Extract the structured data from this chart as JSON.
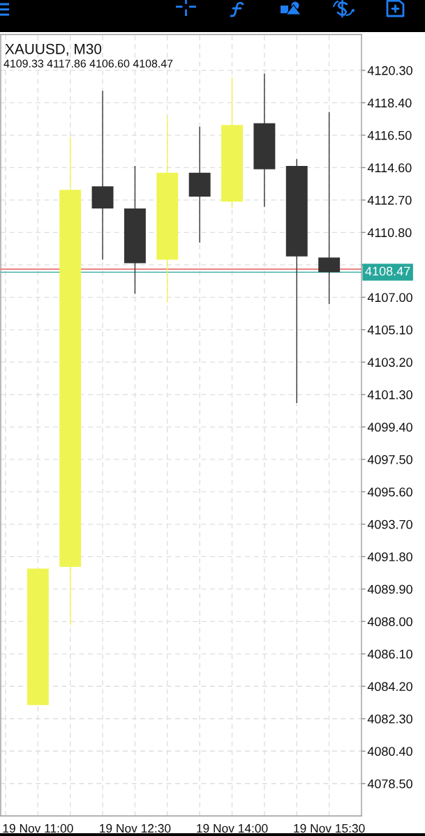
{
  "chart_data": {
    "type": "candlestick",
    "title": "XAUUSD, M30",
    "subtitle": "4109.33 4117.86 4106.60 4108.47",
    "categories": [
      "19 Nov 11:00",
      null,
      null,
      "19 Nov 12:30",
      null,
      null,
      "19 Nov 14:00",
      null,
      null,
      "19 Nov 15:30"
    ],
    "ohlc": [
      [
        4083.1,
        4091.1,
        4083.1,
        4091.1
      ],
      [
        4091.2,
        4116.4,
        4087.8,
        4113.3
      ],
      [
        4113.5,
        4119.1,
        4109.2,
        4112.2
      ],
      [
        4112.2,
        4114.7,
        4107.2,
        4109.0
      ],
      [
        4109.2,
        4117.6,
        4106.7,
        4114.3
      ],
      [
        4114.3,
        4117.0,
        4110.2,
        4112.9
      ],
      [
        4112.6,
        4119.9,
        4112.2,
        4117.1
      ],
      [
        4117.2,
        4120.1,
        4112.3,
        4114.5
      ],
      [
        4114.7,
        4115.1,
        4100.8,
        4109.4
      ],
      [
        4109.33,
        4117.86,
        4106.6,
        4108.47
      ]
    ],
    "colors": [
      "#eef552",
      "#eef552",
      "#333333",
      "#333333",
      "#eef552",
      "#333333",
      "#eef552",
      "#333333",
      "#333333",
      "#333333"
    ],
    "ylim": [
      4076.6,
      4122.4
    ],
    "yticks": [
      {
        "value": 4078.5,
        "label": "4078.50"
      },
      {
        "value": 4080.4,
        "label": "4080.40"
      },
      {
        "value": 4082.3,
        "label": "4082.30"
      },
      {
        "value": 4084.2,
        "label": "4084.20"
      },
      {
        "value": 4086.1,
        "label": "4086.10"
      },
      {
        "value": 4088.0,
        "label": "4088.00"
      },
      {
        "value": 4089.9,
        "label": "4089.90"
      },
      {
        "value": 4091.8,
        "label": "4091.80"
      },
      {
        "value": 4093.7,
        "label": "4093.70"
      },
      {
        "value": 4095.6,
        "label": "4095.60"
      },
      {
        "value": 4097.5,
        "label": "4097.50"
      },
      {
        "value": 4099.4,
        "label": "4099.40"
      },
      {
        "value": 4101.3,
        "label": "4101.30"
      },
      {
        "value": 4103.2,
        "label": "4103.20"
      },
      {
        "value": 4105.1,
        "label": "4105.10"
      },
      {
        "value": 4107.0,
        "label": "4107.00"
      },
      {
        "value": 4108.9,
        "label": null
      },
      {
        "value": 4110.8,
        "label": "4110.80"
      },
      {
        "value": 4112.7,
        "label": "4112.70"
      },
      {
        "value": 4114.6,
        "label": "4114.60"
      },
      {
        "value": 4116.5,
        "label": "4116.50"
      },
      {
        "value": 4118.4,
        "label": "4118.40"
      },
      {
        "value": 4120.3,
        "label": "4120.30"
      }
    ],
    "grid": true,
    "ref_lines": [
      {
        "axis": "y",
        "value": 4108.65,
        "color": "#e25b55"
      },
      {
        "axis": "y",
        "value": 4108.47,
        "label": "4108.47",
        "color": "#27a69b"
      }
    ]
  }
}
